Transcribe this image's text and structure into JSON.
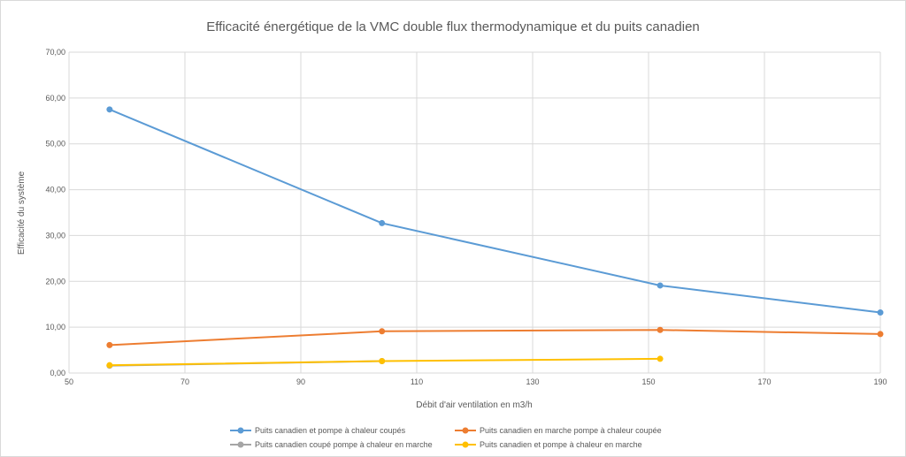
{
  "chart_data": {
    "type": "scatter",
    "title": "Efficacité énergétique de la VMC double flux thermodynamique et du puits canadien",
    "xlabel": "Débit d'air ventilation en m3/h",
    "ylabel": "Efficacité du système",
    "xlim": [
      50,
      190
    ],
    "ylim": [
      0,
      70
    ],
    "x_ticks": [
      "50",
      "70",
      "90",
      "110",
      "130",
      "150",
      "170",
      "190"
    ],
    "y_ticks": [
      "0,00",
      "10,00",
      "20,00",
      "30,00",
      "40,00",
      "50,00",
      "60,00",
      "70,00"
    ],
    "grid": true,
    "legend_position": "bottom",
    "series": [
      {
        "name": "Puits canadien et pompe à chaleur coupés",
        "color": "#5b9bd5",
        "x": [
          57,
          104,
          152,
          190
        ],
        "y": [
          57.5,
          32.7,
          19.1,
          13.2
        ]
      },
      {
        "name": "Puits canadien en marche pompe à chaleur coupée",
        "color": "#ed7d31",
        "x": [
          57,
          104,
          152,
          190
        ],
        "y": [
          6.1,
          9.1,
          9.4,
          8.5
        ]
      },
      {
        "name": "Puits canadien coupé pompe à chaleur en marche",
        "color": "#a5a5a5",
        "x": [
          57,
          104
        ],
        "y": [
          1.6,
          2.6
        ]
      },
      {
        "name": "Puits canadien et pompe à chaleur en marche",
        "color": "#ffc000",
        "x": [
          57,
          104,
          152
        ],
        "y": [
          1.7,
          2.6,
          3.1
        ]
      }
    ]
  }
}
